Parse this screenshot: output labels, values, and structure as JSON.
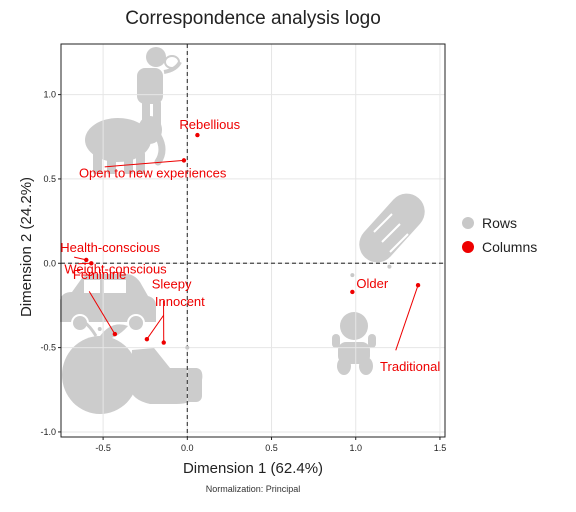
{
  "chart_data": {
    "type": "scatter",
    "title": "Correspondence analysis logo",
    "xlabel": "Dimension 1 (62.4%)",
    "ylabel": "Dimension 2 (24.2%)",
    "footnote": "Normalization: Principal",
    "xlim": [
      -0.75,
      1.53
    ],
    "ylim": [
      -1.03,
      1.3
    ],
    "x_ticks": [
      -0.5,
      0.0,
      0.5,
      1.0,
      1.5
    ],
    "x_tick_labels": [
      "-0.5",
      "0.0",
      "0.5",
      "1.0",
      "1.5"
    ],
    "y_ticks": [
      -1.0,
      -0.5,
      0.0,
      0.5,
      1.0
    ],
    "y_tick_labels": [
      "-1.0",
      "-0.5",
      "0.0",
      "0.5",
      "1.0"
    ],
    "grid": true,
    "legend_position": "right",
    "legend": [
      {
        "name": "Rows",
        "color": "#c8c8c8"
      },
      {
        "name": "Columns",
        "color": "#ee0000"
      }
    ],
    "series": [
      {
        "name": "Rows",
        "color": "#c8c8c8",
        "points": [
          {
            "x": 0.98,
            "y": -0.07
          },
          {
            "x": 1.2,
            "y": -0.02
          },
          {
            "x": -0.52,
            "y": -0.39
          },
          {
            "x": 0.0,
            "y": -0.5
          }
        ]
      },
      {
        "name": "Columns",
        "color": "#ee0000",
        "points": [
          {
            "label": "Rebellious",
            "x": 0.06,
            "y": 0.76
          },
          {
            "label": "Open to new experiences",
            "x": -0.02,
            "y": 0.61
          },
          {
            "label": "Health-conscious",
            "x": -0.6,
            "y": 0.02
          },
          {
            "label": "Weight-conscious",
            "x": -0.57,
            "y": 0.0
          },
          {
            "label": "Feminine",
            "x": -0.43,
            "y": -0.42
          },
          {
            "label": "Sleepy",
            "x": -0.14,
            "y": -0.47
          },
          {
            "label": "Innocent",
            "x": -0.24,
            "y": -0.45
          },
          {
            "label": "Older",
            "x": 0.98,
            "y": -0.17
          },
          {
            "label": "Traditional",
            "x": 1.37,
            "y": -0.13
          }
        ]
      }
    ]
  },
  "icons": [
    "man-with-elephant-icon",
    "bread-icon",
    "car-icon",
    "apple-icon",
    "thumbs-up-icon",
    "baby-icon"
  ]
}
